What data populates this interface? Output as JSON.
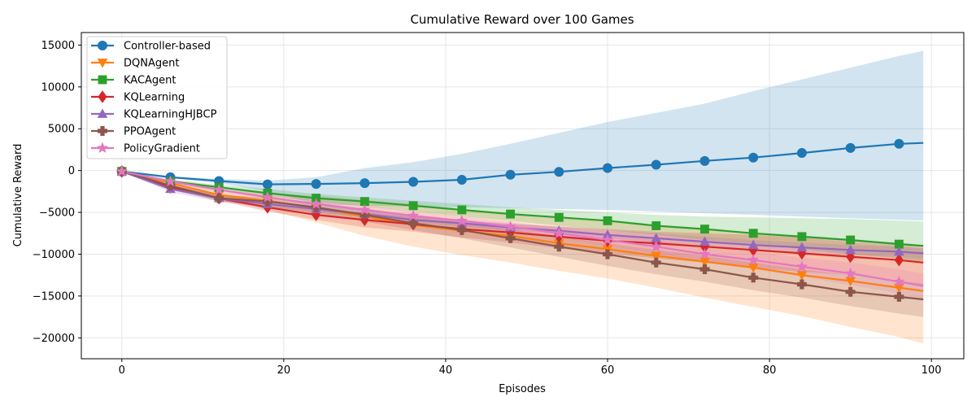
{
  "chart_data": {
    "type": "line",
    "title": "Cumulative Reward over 100 Games",
    "xlabel": "Episodes",
    "ylabel": "Cumulative Reward",
    "xlim": [
      -5,
      104
    ],
    "ylim": [
      -22500,
      16500
    ],
    "xticks": [
      0,
      20,
      40,
      60,
      80,
      100
    ],
    "yticks": [
      -20000,
      -15000,
      -10000,
      -5000,
      0,
      5000,
      10000,
      15000
    ],
    "grid": true,
    "legend_position": "upper-left",
    "x": [
      0,
      6,
      12,
      18,
      24,
      30,
      36,
      42,
      48,
      54,
      60,
      66,
      72,
      78,
      84,
      90,
      96,
      99
    ],
    "series": [
      {
        "name": "Controller-based",
        "color": "#1f77b4",
        "marker": "circle",
        "values": [
          -100,
          -800,
          -1250,
          -1650,
          -1600,
          -1500,
          -1350,
          -1100,
          -500,
          -150,
          300,
          700,
          1150,
          1550,
          2100,
          2700,
          3200,
          3300
        ],
        "band_low": [
          -100,
          -900,
          -1500,
          -2500,
          -4000,
          -4200,
          -4300,
          -4400,
          -4500,
          -4600,
          -4700,
          -4900,
          -5100,
          -5300,
          -5500,
          -5700,
          -5900,
          -6000
        ],
        "band_high": [
          -100,
          -700,
          -1000,
          -1200,
          -800,
          300,
          1000,
          2000,
          3200,
          4500,
          5800,
          6900,
          8000,
          9500,
          10900,
          12300,
          13700,
          14300
        ]
      },
      {
        "name": "DQNAgent",
        "color": "#ff7f0e",
        "marker": "triangle-down",
        "values": [
          -100,
          -1500,
          -2900,
          -3600,
          -4500,
          -5500,
          -6500,
          -7200,
          -7800,
          -8700,
          -9400,
          -10200,
          -10900,
          -11600,
          -12500,
          -13200,
          -14000,
          -14400
        ],
        "band_low": [
          -100,
          -1900,
          -3500,
          -4700,
          -6200,
          -7800,
          -9100,
          -10100,
          -11000,
          -12000,
          -12900,
          -14000,
          -15200,
          -16300,
          -17400,
          -18700,
          -19900,
          -20700
        ],
        "band_high": [
          -100,
          -1200,
          -2300,
          -2700,
          -3000,
          -3500,
          -4000,
          -4600,
          -5100,
          -5600,
          -6100,
          -6600,
          -7100,
          -7500,
          -8000,
          -8600,
          -9000,
          -9300
        ]
      },
      {
        "name": "KACAgent",
        "color": "#2ca02c",
        "marker": "square",
        "values": [
          -100,
          -1300,
          -2000,
          -2700,
          -3300,
          -3700,
          -4200,
          -4700,
          -5200,
          -5600,
          -6000,
          -6600,
          -7000,
          -7500,
          -7900,
          -8300,
          -8800,
          -9000
        ],
        "band_low": [
          -100,
          -1500,
          -2400,
          -3100,
          -3700,
          -4300,
          -4900,
          -5500,
          -6000,
          -6600,
          -7100,
          -7700,
          -8300,
          -8800,
          -9400,
          -10000,
          -10500,
          -11000
        ],
        "band_high": [
          -100,
          -1100,
          -1700,
          -2200,
          -2800,
          -3200,
          -3600,
          -4000,
          -4400,
          -4700,
          -5000,
          -5300,
          -5500,
          -5600,
          -5700,
          -5800,
          -6000,
          -6100
        ]
      },
      {
        "name": "KQLearning",
        "color": "#d62728",
        "marker": "diamond",
        "values": [
          -100,
          -2000,
          -3300,
          -4400,
          -5300,
          -5900,
          -6400,
          -7000,
          -7400,
          -7900,
          -8400,
          -8700,
          -9100,
          -9500,
          -9900,
          -10300,
          -10700,
          -11000
        ],
        "band_low": [
          -100,
          -2300,
          -3600,
          -4900,
          -5900,
          -6800,
          -7300,
          -8000,
          -8600,
          -9300,
          -9900,
          -10500,
          -11000,
          -11600,
          -12100,
          -12500,
          -13200,
          -13700
        ],
        "band_high": [
          -100,
          -1700,
          -2900,
          -3800,
          -4600,
          -5000,
          -5500,
          -6000,
          -6400,
          -6700,
          -7000,
          -7300,
          -7500,
          -7700,
          -8000,
          -8300,
          -8600,
          -8900
        ]
      },
      {
        "name": "KQLearningHJBCP",
        "color": "#9467bd",
        "marker": "triangle-up",
        "values": [
          -100,
          -2200,
          -3300,
          -4000,
          -4600,
          -5200,
          -5900,
          -6300,
          -6800,
          -7200,
          -7700,
          -8100,
          -8500,
          -8900,
          -9200,
          -9500,
          -9700,
          -9900
        ],
        "band_low": [
          -100,
          -2600,
          -3700,
          -4400,
          -5000,
          -5600,
          -6200,
          -6700,
          -7200,
          -7600,
          -8100,
          -8600,
          -9000,
          -9400,
          -9800,
          -10100,
          -10400,
          -10600
        ],
        "band_high": [
          -100,
          -1800,
          -2900,
          -3500,
          -4100,
          -4700,
          -5400,
          -5900,
          -6300,
          -6700,
          -7100,
          -7500,
          -7900,
          -8300,
          -8600,
          -8900,
          -9100,
          -9300
        ]
      },
      {
        "name": "PPOAgent",
        "color": "#8c564b",
        "marker": "plus-filled",
        "values": [
          -100,
          -1800,
          -3300,
          -3700,
          -4400,
          -5300,
          -6300,
          -7100,
          -8100,
          -9100,
          -10000,
          -11000,
          -11800,
          -12800,
          -13600,
          -14500,
          -15100,
          -15400
        ],
        "band_low": [
          -100,
          -2200,
          -3700,
          -4300,
          -5100,
          -6100,
          -7100,
          -8100,
          -9200,
          -10300,
          -11400,
          -12400,
          -13300,
          -14300,
          -15200,
          -16200,
          -17100,
          -17500
        ],
        "band_high": [
          -100,
          -1500,
          -2900,
          -3200,
          -3800,
          -4500,
          -5400,
          -6200,
          -7000,
          -7900,
          -8700,
          -9500,
          -10200,
          -11000,
          -11800,
          -12500,
          -13200,
          -13500
        ]
      },
      {
        "name": "PolicyGradient",
        "color": "#e377c2",
        "marker": "star",
        "values": [
          -100,
          -1300,
          -2300,
          -3200,
          -4000,
          -4700,
          -5400,
          -6000,
          -6700,
          -7500,
          -8300,
          -9100,
          -10000,
          -10700,
          -11500,
          -12300,
          -13300,
          -13800
        ],
        "band_low": [
          -100,
          -1600,
          -2700,
          -3600,
          -4400,
          -5100,
          -5800,
          -6500,
          -7300,
          -8100,
          -9000,
          -9900,
          -10900,
          -11800,
          -12700,
          -13700,
          -14700,
          -15300
        ],
        "band_high": [
          -100,
          -1000,
          -1900,
          -2700,
          -3500,
          -4200,
          -4900,
          -5500,
          -6100,
          -6900,
          -7600,
          -8300,
          -9100,
          -9700,
          -10400,
          -11000,
          -11800,
          -12300
        ]
      }
    ]
  }
}
